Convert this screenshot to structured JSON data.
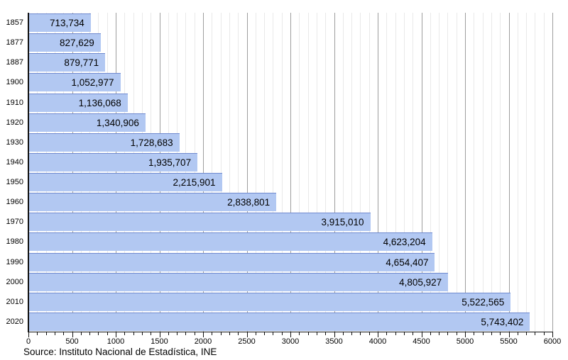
{
  "chart_data": {
    "type": "bar",
    "orientation": "horizontal",
    "title": "",
    "categories": [
      "1857",
      "1877",
      "1887",
      "1900",
      "1910",
      "1920",
      "1930",
      "1940",
      "1950",
      "1960",
      "1970",
      "1980",
      "1990",
      "2000",
      "2010",
      "2020"
    ],
    "values": [
      713734,
      827629,
      879771,
      1052977,
      1136068,
      1340906,
      1728683,
      1935707,
      2215901,
      2838801,
      3915010,
      4623204,
      4654407,
      4805927,
      5522565,
      5743402
    ],
    "value_labels": [
      "713,734",
      "827,629",
      "879,771",
      "1,052,977",
      "1,136,068",
      "1,340,906",
      "1,728,683",
      "1,935,707",
      "2,215,901",
      "2,838,801",
      "3,915,010",
      "4,623,204",
      "4,654,407",
      "4,805,927",
      "5,522,565",
      "5,743,402"
    ],
    "xlabel": "",
    "ylabel": "",
    "xlim": [
      0,
      6000
    ],
    "x_axis_unit": "thousands",
    "x_major_step": 500,
    "x_minor_step": 100,
    "x_tick_labels": [
      "0",
      "500",
      "1000",
      "1500",
      "2000",
      "2500",
      "3000",
      "3500",
      "4000",
      "4500",
      "5000",
      "5500",
      "6000"
    ],
    "grid": "vertical minor and major lines, on",
    "legend": "none",
    "colors": {
      "bar_fill": "#b2c8f2",
      "bar_border": "#6f89cf",
      "grid_minor": "#e9e9e9",
      "grid_major": "#9e9e9e",
      "axis": "#111111",
      "label_text": "#000000"
    }
  },
  "footer": {
    "source": "Source: Instituto Nacional de Estadística, INE"
  }
}
